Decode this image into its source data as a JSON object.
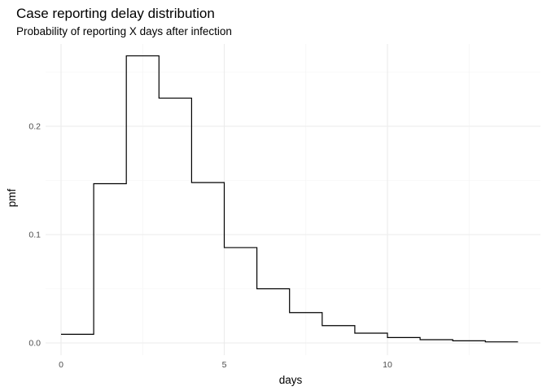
{
  "chart_data": {
    "type": "line",
    "style": "step",
    "title": "Case reporting delay distribution",
    "subtitle": "Probability of reporting X days after infection",
    "xlabel": "days",
    "ylabel": "pmf",
    "xlim": [
      0,
      14
    ],
    "ylim": [
      0,
      0.265
    ],
    "x_ticks": [
      0,
      5,
      10
    ],
    "x_tick_labels": [
      "0",
      "5",
      "10"
    ],
    "y_ticks": [
      0,
      0.1,
      0.2
    ],
    "y_tick_labels": [
      "0.0",
      "0.1",
      "0.2"
    ],
    "grid": true,
    "legend": "none",
    "x": [
      0,
      1,
      2,
      3,
      4,
      5,
      6,
      7,
      8,
      9,
      10,
      11,
      12,
      13
    ],
    "values": [
      0.008,
      0.147,
      0.265,
      0.226,
      0.148,
      0.088,
      0.05,
      0.028,
      0.016,
      0.009,
      0.005,
      0.003,
      0.002,
      0.001
    ],
    "line_color": "#000000"
  }
}
